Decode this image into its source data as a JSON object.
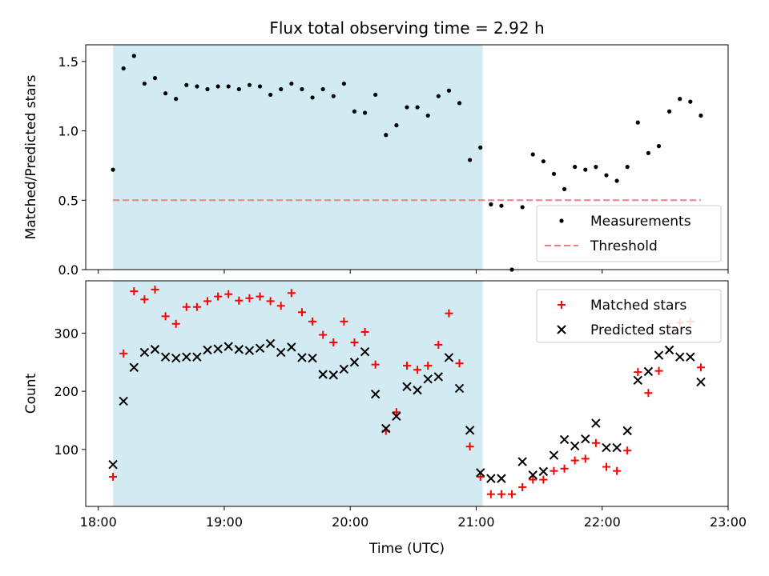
{
  "chart_data": {
    "type": "scatter",
    "title": "Flux total observing time = 2.92 h",
    "xlabel": "Time (UTC)",
    "x_ticks": [
      "18:00",
      "19:00",
      "20:00",
      "21:00",
      "22:00",
      "23:00"
    ],
    "xlim": [
      "17:54",
      "23:00"
    ],
    "observing_window": {
      "start": "18:07",
      "end": "21:03",
      "color": "#add8e6"
    },
    "panels": [
      {
        "ylabel": "Matched/Predicted stars",
        "ylim": [
          0,
          1.62
        ],
        "y_ticks": [
          "0.0",
          "0.5",
          "1.0",
          "1.5"
        ],
        "legend_position": "lower-right",
        "series": [
          {
            "name": "Measurements",
            "marker": "dot",
            "color": "#000000",
            "points": [
              [
                "18:07",
                0.72
              ],
              [
                "18:12",
                1.45
              ],
              [
                "18:17",
                1.54
              ],
              [
                "18:22",
                1.34
              ],
              [
                "18:27",
                1.38
              ],
              [
                "18:32",
                1.27
              ],
              [
                "18:37",
                1.23
              ],
              [
                "18:42",
                1.33
              ],
              [
                "18:47",
                1.32
              ],
              [
                "18:52",
                1.3
              ],
              [
                "18:57",
                1.32
              ],
              [
                "19:02",
                1.32
              ],
              [
                "19:07",
                1.3
              ],
              [
                "19:12",
                1.33
              ],
              [
                "19:17",
                1.32
              ],
              [
                "19:22",
                1.26
              ],
              [
                "19:27",
                1.3
              ],
              [
                "19:32",
                1.34
              ],
              [
                "19:37",
                1.3
              ],
              [
                "19:42",
                1.24
              ],
              [
                "19:47",
                1.3
              ],
              [
                "19:52",
                1.25
              ],
              [
                "19:57",
                1.34
              ],
              [
                "20:02",
                1.14
              ],
              [
                "20:07",
                1.13
              ],
              [
                "20:12",
                1.26
              ],
              [
                "20:17",
                0.97
              ],
              [
                "20:22",
                1.04
              ],
              [
                "20:27",
                1.17
              ],
              [
                "20:32",
                1.17
              ],
              [
                "20:37",
                1.11
              ],
              [
                "20:42",
                1.25
              ],
              [
                "20:47",
                1.29
              ],
              [
                "20:52",
                1.2
              ],
              [
                "20:57",
                0.79
              ],
              [
                "21:02",
                0.88
              ],
              [
                "21:07",
                0.47
              ],
              [
                "21:12",
                0.46
              ],
              [
                "21:17",
                0.0
              ],
              [
                "21:22",
                0.45
              ],
              [
                "21:27",
                0.83
              ],
              [
                "21:32",
                0.78
              ],
              [
                "21:37",
                0.69
              ],
              [
                "21:42",
                0.58
              ],
              [
                "21:47",
                0.74
              ],
              [
                "21:52",
                0.72
              ],
              [
                "21:57",
                0.74
              ],
              [
                "22:02",
                0.68
              ],
              [
                "22:07",
                0.64
              ],
              [
                "22:12",
                0.74
              ],
              [
                "22:17",
                1.06
              ],
              [
                "22:22",
                0.84
              ],
              [
                "22:27",
                0.89
              ],
              [
                "22:32",
                1.14
              ],
              [
                "22:37",
                1.23
              ],
              [
                "22:42",
                1.21
              ],
              [
                "22:47",
                1.11
              ]
            ]
          },
          {
            "name": "Threshold",
            "marker": "dashed-line",
            "color": "#f08080",
            "points": [
              [
                "18:07",
                0.5
              ],
              [
                "22:47",
                0.5
              ]
            ]
          }
        ]
      },
      {
        "ylabel": "Count",
        "ylim": [
          2,
          390
        ],
        "y_ticks": [
          "100",
          "200",
          "300"
        ],
        "legend_position": "upper-right",
        "series": [
          {
            "name": "Matched stars",
            "marker": "plus",
            "color": "#ff0000",
            "points": [
              [
                "18:07",
                53
              ],
              [
                "18:12",
                265
              ],
              [
                "18:17",
                372
              ],
              [
                "18:22",
                358
              ],
              [
                "18:27",
                375
              ],
              [
                "18:32",
                329
              ],
              [
                "18:37",
                316
              ],
              [
                "18:42",
                345
              ],
              [
                "18:47",
                345
              ],
              [
                "18:52",
                355
              ],
              [
                "18:57",
                363
              ],
              [
                "19:02",
                367
              ],
              [
                "19:07",
                356
              ],
              [
                "19:12",
                360
              ],
              [
                "19:17",
                363
              ],
              [
                "19:22",
                355
              ],
              [
                "19:27",
                347
              ],
              [
                "19:32",
                369
              ],
              [
                "19:37",
                336
              ],
              [
                "19:42",
                320
              ],
              [
                "19:47",
                297
              ],
              [
                "19:52",
                284
              ],
              [
                "19:57",
                320
              ],
              [
                "20:02",
                284
              ],
              [
                "20:07",
                302
              ],
              [
                "20:12",
                246
              ],
              [
                "20:17",
                132
              ],
              [
                "20:22",
                164
              ],
              [
                "20:27",
                244
              ],
              [
                "20:32",
                237
              ],
              [
                "20:37",
                244
              ],
              [
                "20:42",
                280
              ],
              [
                "20:47",
                334
              ],
              [
                "20:52",
                248
              ],
              [
                "20:57",
                105
              ],
              [
                "21:02",
                53
              ],
              [
                "21:07",
                23
              ],
              [
                "21:12",
                23
              ],
              [
                "21:17",
                23
              ],
              [
                "21:22",
                35
              ],
              [
                "21:27",
                48
              ],
              [
                "21:32",
                48
              ],
              [
                "21:37",
                63
              ],
              [
                "21:42",
                67
              ],
              [
                "21:47",
                81
              ],
              [
                "21:52",
                84
              ],
              [
                "21:57",
                111
              ],
              [
                "22:02",
                70
              ],
              [
                "22:07",
                63
              ],
              [
                "22:12",
                98
              ],
              [
                "22:17",
                233
              ],
              [
                "22:22",
                197
              ],
              [
                "22:27",
                235
              ],
              [
                "22:32",
                310
              ],
              [
                "22:37",
                318
              ],
              [
                "22:42",
                320
              ],
              [
                "22:47",
                241
              ]
            ]
          },
          {
            "name": "Predicted stars",
            "marker": "x",
            "color": "#000000",
            "points": [
              [
                "18:07",
                74
              ],
              [
                "18:12",
                183
              ],
              [
                "18:17",
                241
              ],
              [
                "18:22",
                267
              ],
              [
                "18:27",
                272
              ],
              [
                "18:32",
                259
              ],
              [
                "18:37",
                257
              ],
              [
                "18:42",
                259
              ],
              [
                "18:47",
                259
              ],
              [
                "18:52",
                271
              ],
              [
                "18:57",
                273
              ],
              [
                "19:02",
                277
              ],
              [
                "19:07",
                272
              ],
              [
                "19:12",
                270
              ],
              [
                "19:17",
                274
              ],
              [
                "19:22",
                282
              ],
              [
                "19:27",
                267
              ],
              [
                "19:32",
                276
              ],
              [
                "19:37",
                258
              ],
              [
                "19:42",
                257
              ],
              [
                "19:47",
                229
              ],
              [
                "19:52",
                228
              ],
              [
                "19:57",
                238
              ],
              [
                "20:02",
                250
              ],
              [
                "20:07",
                268
              ],
              [
                "20:12",
                195
              ],
              [
                "20:17",
                136
              ],
              [
                "20:22",
                157
              ],
              [
                "20:27",
                208
              ],
              [
                "20:32",
                202
              ],
              [
                "20:37",
                221
              ],
              [
                "20:42",
                225
              ],
              [
                "20:47",
                258
              ],
              [
                "20:52",
                205
              ],
              [
                "20:57",
                133
              ],
              [
                "21:02",
                60
              ],
              [
                "21:07",
                50
              ],
              [
                "21:12",
                50
              ],
              [
                "21:22",
                79
              ],
              [
                "21:27",
                56
              ],
              [
                "21:32",
                62
              ],
              [
                "21:37",
                90
              ],
              [
                "21:42",
                117
              ],
              [
                "21:47",
                106
              ],
              [
                "21:52",
                118
              ],
              [
                "21:57",
                145
              ],
              [
                "22:02",
                103
              ],
              [
                "22:07",
                103
              ],
              [
                "22:12",
                132
              ],
              [
                "22:17",
                219
              ],
              [
                "22:22",
                234
              ],
              [
                "22:27",
                262
              ],
              [
                "22:32",
                271
              ],
              [
                "22:37",
                259
              ],
              [
                "22:42",
                259
              ],
              [
                "22:47",
                216
              ]
            ]
          }
        ]
      }
    ]
  }
}
